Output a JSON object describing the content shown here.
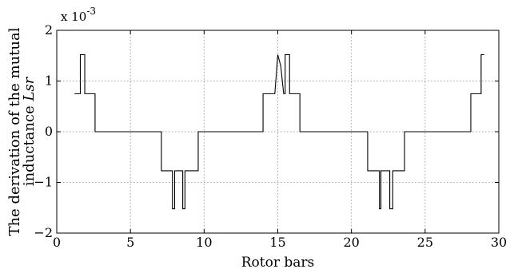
{
  "chart_data": {
    "type": "line",
    "title": "",
    "xlabel": "Rotor bars",
    "ylabel_parts": [
      "The derivation of the mutual",
      "inductance ",
      "Lsr"
    ],
    "y_multiplier": "x 10",
    "y_multiplier_exponent": "-3",
    "xlim": [
      0,
      30
    ],
    "ylim": [
      -2,
      2
    ],
    "x_ticks": [
      "0",
      "5",
      "10",
      "15",
      "20",
      "25",
      "30"
    ],
    "y_ticks": [
      "−2",
      "−1",
      "0",
      "1",
      "2"
    ],
    "grid": true,
    "legend": "none",
    "series": [
      {
        "x": [
          1.2,
          1.6,
          1.6,
          1.9,
          1.9,
          2.6,
          2.6,
          7.1,
          7.1,
          7.85,
          7.85,
          8.0,
          8.0,
          8.55,
          8.55,
          8.7,
          8.7,
          9.6,
          9.6,
          14.0,
          14.0,
          14.8,
          15.0,
          15.2,
          15.4,
          15.5,
          15.5,
          15.8,
          15.8,
          16.5,
          16.5,
          21.1,
          21.1,
          21.9,
          21.9,
          22.0,
          22.0,
          22.6,
          22.6,
          22.8,
          22.8,
          23.6,
          23.6,
          28.1,
          28.1,
          28.8,
          28.8,
          29.0
        ],
        "y": [
          0.75,
          0.75,
          1.52,
          1.52,
          0.75,
          0.75,
          0.0,
          0.0,
          -0.77,
          -0.77,
          -1.52,
          -1.52,
          -0.77,
          -0.77,
          -1.52,
          -1.52,
          -0.77,
          -0.77,
          0.0,
          0.0,
          0.75,
          0.75,
          1.52,
          1.3,
          0.75,
          0.75,
          1.52,
          1.52,
          0.75,
          0.75,
          0.0,
          0.0,
          -0.77,
          -0.77,
          -1.52,
          -1.52,
          -0.77,
          -0.77,
          -1.52,
          -1.52,
          -0.77,
          -0.77,
          0.0,
          0.0,
          0.75,
          0.75,
          1.52,
          1.52
        ]
      }
    ]
  }
}
